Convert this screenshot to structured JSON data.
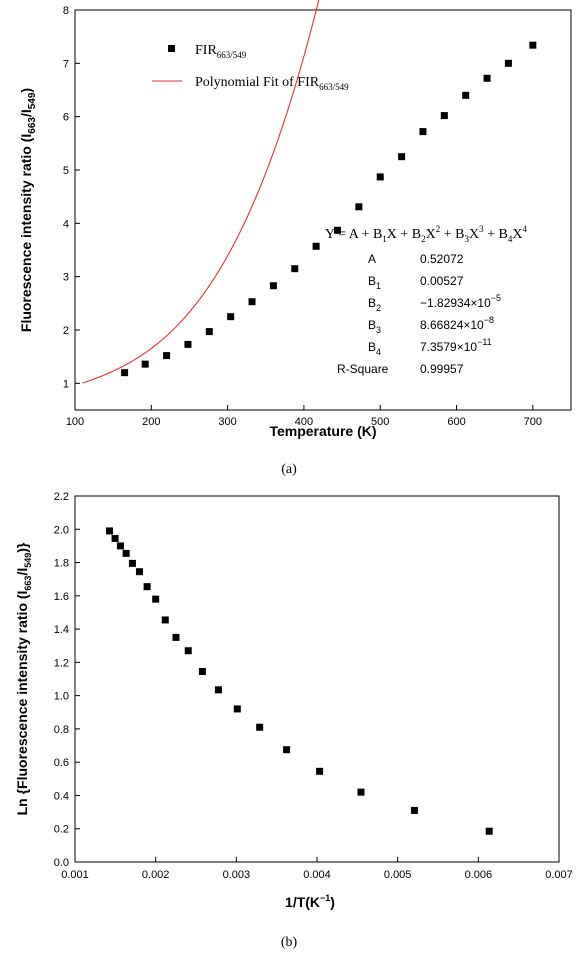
{
  "chart_data": [
    {
      "type": "scatter",
      "panel_label": "(a)",
      "xlabel": "Temperature (K)",
      "ylabel": {
        "main": "Fluorescence intensity ratio (I",
        "sub1": "663",
        "mid": "/I",
        "sub2": "549",
        "end": ")"
      },
      "xlim": [
        100,
        750
      ],
      "ylim": [
        0.5,
        8
      ],
      "xticks": [
        100,
        200,
        300,
        400,
        500,
        600,
        700
      ],
      "yticks": [
        1,
        2,
        3,
        4,
        5,
        6,
        7,
        8
      ],
      "legend_position": "top-left",
      "legend": {
        "scatter": {
          "main": "FIR",
          "sub": "663/549"
        },
        "fit": {
          "main": "Polynomial Fit of FIR",
          "sub": "663/549"
        }
      },
      "fit_color": "#e8322e",
      "marker_color": "#000000",
      "series": [
        {
          "x": [
            165,
            192,
            220,
            248,
            276,
            304,
            332,
            360,
            388,
            416,
            444,
            472,
            500,
            528,
            556,
            584,
            612,
            640,
            668,
            700
          ],
          "y": [
            1.2,
            1.36,
            1.52,
            1.73,
            1.97,
            2.25,
            2.53,
            2.83,
            3.15,
            3.57,
            3.87,
            4.31,
            4.87,
            5.25,
            5.72,
            6.02,
            6.4,
            6.72,
            7.0,
            7.34
          ]
        }
      ],
      "fit": {
        "equation": {
          "p1": "Y = A + B",
          "s1": "1",
          "p2": "X + B",
          "s2": "2",
          "p3": "X",
          "e2": "2",
          "p4": " + B",
          "s3": "3",
          "p5": "X",
          "e3": "3",
          "p6": " + B",
          "s4": "4",
          "p7": "X",
          "e4": "4"
        },
        "x_range": [
          110,
          750
        ],
        "A": 0.52072,
        "B1": 0.00527,
        "B2": -1.82934e-05,
        "B3": 8.66824e-08,
        "B4": 7.3579e-11
      },
      "params_table": [
        {
          "name": "A",
          "sub": "",
          "value": "0.52072",
          "exp": ""
        },
        {
          "name": "B",
          "sub": "1",
          "value": "0.00527",
          "exp": ""
        },
        {
          "name": "B",
          "sub": "2",
          "value": "−1.82934×10",
          "exp": "−5"
        },
        {
          "name": "B",
          "sub": "3",
          "value": "8.66824×10",
          "exp": "−8"
        },
        {
          "name": "B",
          "sub": "4",
          "value": "7.3579×10",
          "exp": "−11"
        },
        {
          "name": "R-Square",
          "sub": "",
          "value": "0.99957",
          "exp": ""
        }
      ]
    },
    {
      "type": "scatter",
      "panel_label": "(b)",
      "xlabel": {
        "main": "1/T(K",
        "sup": "−1",
        "end": ")"
      },
      "ylabel": {
        "main": "Ln {Fluorescence intensity ratio (I",
        "sub1": "663",
        "mid": "/I",
        "sub2": "549",
        "end": ")}"
      },
      "xlim": [
        0.001,
        0.007
      ],
      "ylim": [
        0.0,
        2.2
      ],
      "xticks": [
        "0.001",
        "0.002",
        "0.003",
        "0.004",
        "0.005",
        "0.006",
        "0.007"
      ],
      "yticks": [
        "0.0",
        "0.2",
        "0.4",
        "0.6",
        "0.8",
        "1.0",
        "1.2",
        "1.4",
        "1.6",
        "1.8",
        "2.0",
        "2.2"
      ],
      "marker_color": "#000000",
      "series": [
        {
          "x": [
            0.001428,
            0.001497,
            0.001563,
            0.001634,
            0.001712,
            0.001799,
            0.001894,
            0.002,
            0.002119,
            0.002252,
            0.002404,
            0.002579,
            0.002778,
            0.003012,
            0.003289,
            0.003623,
            0.004032,
            0.004545,
            0.005208,
            0.006135
          ],
          "y": [
            1.99,
            1.945,
            1.9,
            1.855,
            1.795,
            1.745,
            1.655,
            1.58,
            1.455,
            1.35,
            1.27,
            1.145,
            1.035,
            0.92,
            0.81,
            0.675,
            0.545,
            0.42,
            0.31,
            0.185
          ]
        }
      ]
    }
  ]
}
